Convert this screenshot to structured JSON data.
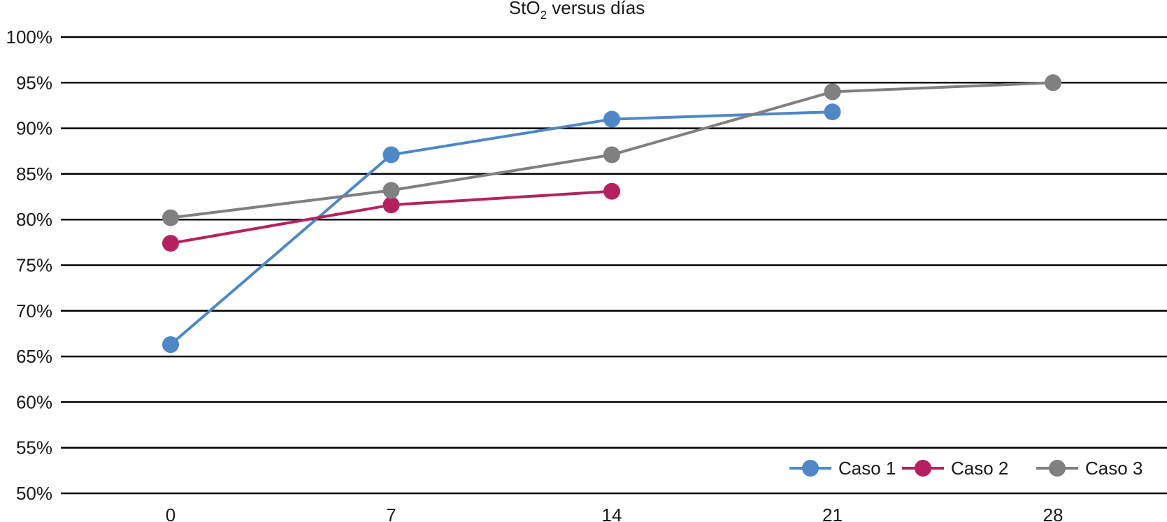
{
  "chart_data": {
    "type": "line",
    "title_main": "StO",
    "title_sub": "2",
    "title_rest": " versus días",
    "x": [
      "0",
      "7",
      "14",
      "21",
      "28"
    ],
    "ylim": [
      50,
      100
    ],
    "yticks": [
      "50%",
      "55%",
      "60%",
      "65%",
      "70%",
      "75%",
      "80%",
      "85%",
      "90%",
      "95%",
      "100%"
    ],
    "ytick_values": [
      50,
      55,
      60,
      65,
      70,
      75,
      80,
      85,
      90,
      95,
      100
    ],
    "grid": true,
    "legend_position": "bottom-right",
    "series": [
      {
        "name": "Caso 1",
        "color": "#4f87c7",
        "values": [
          66.3,
          87.1,
          91.0,
          91.8,
          null
        ]
      },
      {
        "name": "Caso 2",
        "color": "#b5215e",
        "values": [
          77.4,
          81.6,
          83.1,
          null,
          null
        ]
      },
      {
        "name": "Caso 3",
        "color": "#808080",
        "values": [
          80.2,
          83.2,
          87.1,
          94.0,
          95.0
        ]
      }
    ]
  }
}
